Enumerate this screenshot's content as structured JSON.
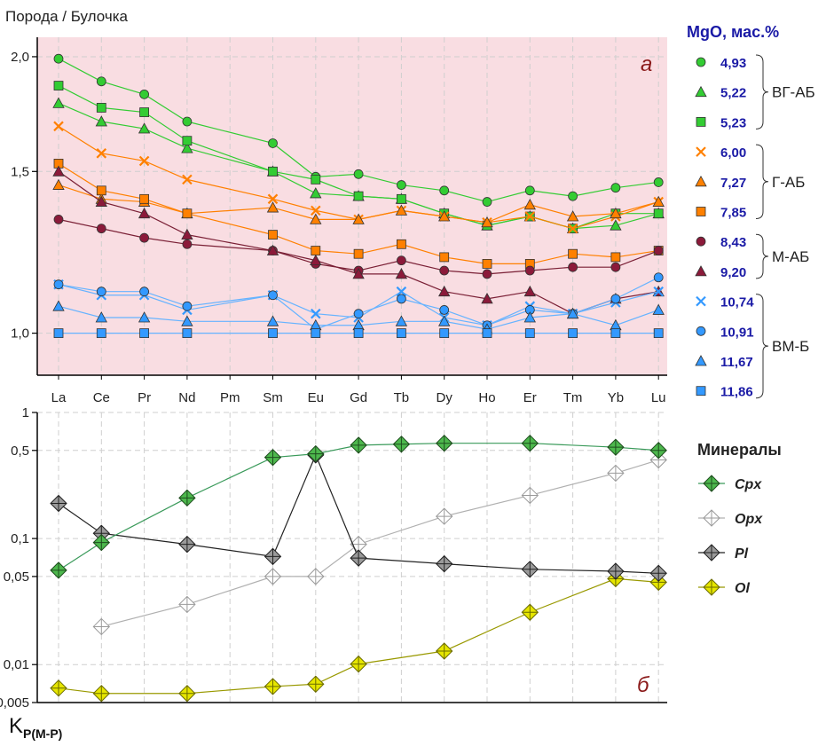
{
  "figure": {
    "panel_a_ylabel": "Порода / Булочка",
    "panel_b_ylabel_main": "K",
    "panel_b_ylabel_sub": "Р(М-Р)",
    "panel_a_letter": "а",
    "panel_b_letter": "б"
  },
  "legend_a": {
    "title": "MgO, мас.%",
    "groups": [
      {
        "label": "ВГ-АБ",
        "items": [
          "4,93",
          "5,22",
          "5,23"
        ]
      },
      {
        "label": "Г-АБ",
        "items": [
          "6,00",
          "7,27",
          "7,85"
        ]
      },
      {
        "label": "М-АБ",
        "items": [
          "8,43",
          "9,20"
        ]
      },
      {
        "label": "ВМ-Б",
        "items": [
          "10,74",
          "10,91",
          "11,67",
          "11,86"
        ]
      }
    ]
  },
  "legend_b": {
    "title": "Минералы",
    "items": [
      "Cpx",
      "Opx",
      "Pl",
      "Ol"
    ]
  },
  "colors": {
    "panel_a_bg": "#f9dde2",
    "vg_ab": "#33cc33",
    "g_ab": "#ff8000",
    "m_ab": "#8b1a3a",
    "vm_b": "#3399ff",
    "cpx": "#4db84d",
    "opx": "#c8c8c8",
    "pl": "#707070",
    "ol": "#e6e600",
    "legend_title": "#1a1aa6"
  },
  "chart_data": [
    {
      "type": "line",
      "panel": "а",
      "title": "",
      "xlabel": "",
      "ylabel": "Порода / Булочка",
      "y_scale": "log",
      "ylim": [
        0.9,
        2.1
      ],
      "yticks": [
        "1,0",
        "1,5",
        "2,0"
      ],
      "categories": [
        "La",
        "Ce",
        "Pr",
        "Nd",
        "Pm",
        "Sm",
        "Eu",
        "Gd",
        "Tb",
        "Dy",
        "Ho",
        "Er",
        "Tm",
        "Yb",
        "Lu"
      ],
      "grid": true,
      "legend_position": "right",
      "series": [
        {
          "name": "4,93",
          "marker": "circle",
          "values": [
            1.99,
            1.88,
            1.82,
            1.7,
            null,
            1.61,
            1.48,
            1.49,
            1.45,
            1.43,
            1.39,
            1.43,
            1.41,
            1.44,
            1.46
          ]
        },
        {
          "name": "5,22",
          "marker": "triangle",
          "values": [
            1.78,
            1.7,
            1.67,
            1.59,
            null,
            1.5,
            1.42,
            1.41,
            1.4,
            1.35,
            1.31,
            1.34,
            1.3,
            1.31,
            1.35
          ]
        },
        {
          "name": "5,23",
          "marker": "square",
          "values": [
            1.86,
            1.76,
            1.74,
            1.62,
            null,
            1.5,
            1.47,
            1.41,
            1.4,
            1.35,
            1.31,
            1.34,
            1.3,
            1.35,
            1.35
          ]
        },
        {
          "name": "6,00",
          "marker": "x",
          "values": [
            1.68,
            1.57,
            1.54,
            1.47,
            null,
            1.4,
            1.36,
            1.33,
            1.36,
            1.34,
            1.32,
            1.34,
            1.3,
            1.34,
            1.39
          ]
        },
        {
          "name": "7,27",
          "marker": "triangle",
          "values": [
            1.45,
            1.4,
            1.39,
            1.35,
            null,
            1.37,
            1.33,
            1.33,
            1.36,
            1.34,
            1.32,
            1.38,
            1.34,
            1.35,
            1.39
          ]
        },
        {
          "name": "7,85",
          "marker": "square",
          "values": [
            1.53,
            1.43,
            1.4,
            1.35,
            null,
            1.28,
            1.23,
            1.22,
            1.25,
            1.21,
            1.19,
            1.19,
            1.22,
            1.21,
            1.23
          ]
        },
        {
          "name": "8,43",
          "marker": "circle",
          "values": [
            1.33,
            1.3,
            1.27,
            1.25,
            null,
            1.23,
            1.19,
            1.17,
            1.2,
            1.17,
            1.16,
            1.17,
            1.18,
            1.18,
            1.23
          ]
        },
        {
          "name": "9,20",
          "marker": "triangle",
          "values": [
            1.5,
            1.39,
            1.35,
            1.28,
            null,
            1.23,
            1.2,
            1.16,
            1.16,
            1.11,
            1.09,
            1.11,
            1.05,
            1.09,
            1.11
          ]
        },
        {
          "name": "10,74",
          "marker": "x",
          "values": [
            1.13,
            1.1,
            1.1,
            1.06,
            null,
            1.1,
            1.05,
            1.04,
            1.11,
            1.04,
            1.02,
            1.07,
            1.05,
            1.08,
            1.11
          ]
        },
        {
          "name": "10,91",
          "marker": "circle",
          "values": [
            1.13,
            1.11,
            1.11,
            1.07,
            null,
            1.1,
            1.01,
            1.05,
            1.09,
            1.06,
            1.02,
            1.06,
            1.05,
            1.09,
            1.15
          ]
        },
        {
          "name": "11,67",
          "marker": "triangle",
          "values": [
            1.07,
            1.04,
            1.04,
            1.03,
            null,
            1.03,
            1.02,
            1.02,
            1.03,
            1.03,
            1.01,
            1.04,
            1.05,
            1.02,
            1.06
          ]
        },
        {
          "name": "11,86",
          "marker": "square",
          "values": [
            1.0,
            1.0,
            1.0,
            1.0,
            null,
            1.0,
            1.0,
            1.0,
            1.0,
            1.0,
            1.0,
            1.0,
            1.0,
            1.0,
            1.0
          ]
        }
      ]
    },
    {
      "type": "line",
      "panel": "б",
      "title": "",
      "xlabel": "",
      "ylabel": "KР(М-Р)",
      "y_scale": "log",
      "ylim": [
        0.005,
        1
      ],
      "yticks": [
        "0,005",
        "0,01",
        "0,05",
        "0,1",
        "0,5",
        "1"
      ],
      "categories": [
        "La",
        "Ce",
        "Pr",
        "Nd",
        "Pm",
        "Sm",
        "Eu",
        "Gd",
        "Tb",
        "Dy",
        "Ho",
        "Er",
        "Tm",
        "Yb",
        "Lu"
      ],
      "grid": true,
      "legend_position": "right",
      "series": [
        {
          "name": "Cpx",
          "values": [
            0.056,
            0.093,
            null,
            0.21,
            null,
            0.44,
            0.47,
            0.55,
            0.56,
            0.57,
            null,
            0.57,
            null,
            0.53,
            0.5
          ]
        },
        {
          "name": "Opx",
          "values": [
            null,
            0.02,
            null,
            0.03,
            null,
            0.05,
            0.05,
            0.09,
            null,
            0.15,
            null,
            0.22,
            null,
            0.33,
            0.42
          ]
        },
        {
          "name": "Pl",
          "values": [
            0.19,
            0.11,
            null,
            0.09,
            null,
            0.072,
            0.46,
            0.07,
            null,
            0.063,
            null,
            0.057,
            null,
            0.055,
            0.053
          ]
        },
        {
          "name": "Ol",
          "values": [
            0.0065,
            0.0059,
            null,
            0.0059,
            null,
            0.0067,
            0.007,
            0.0101,
            null,
            0.0128,
            null,
            0.026,
            null,
            0.048,
            0.045
          ]
        }
      ]
    }
  ]
}
